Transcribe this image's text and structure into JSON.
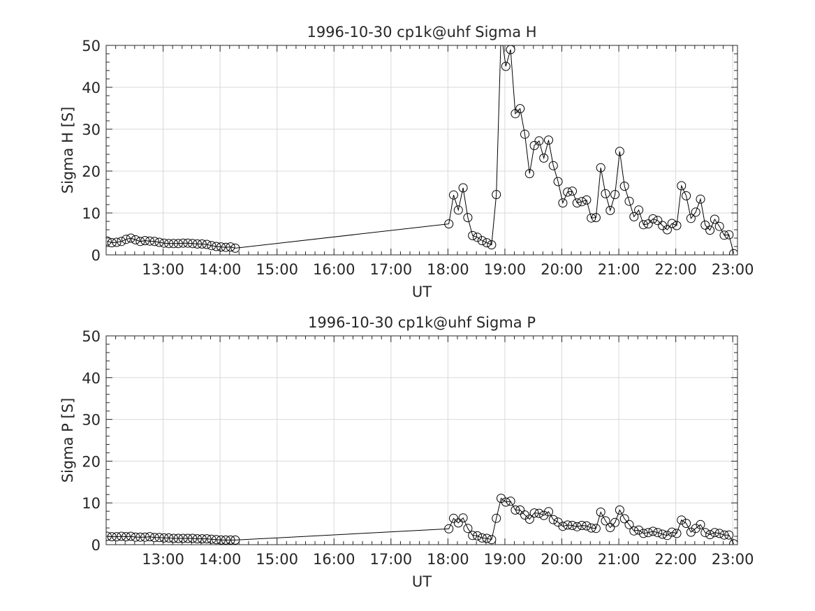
{
  "chart_data": [
    {
      "type": "line",
      "title": "1996-10-30  cp1k@uhf Sigma H",
      "xlabel": "UT",
      "ylabel": "Sigma H [S]",
      "ylim": [
        0,
        50
      ],
      "yticks": [
        "0",
        "10",
        "20",
        "30",
        "40",
        "50"
      ],
      "xticks": [
        "13:00",
        "14:00",
        "15:00",
        "16:00",
        "17:00",
        "18:00",
        "19:00",
        "20:00",
        "21:00",
        "22:00",
        "23:00"
      ],
      "grid": true,
      "series": [
        {
          "x": [
            "12:01",
            "12:06",
            "12:11",
            "12:16",
            "12:21",
            "12:26",
            "12:31",
            "12:36",
            "12:41",
            "12:46",
            "12:51",
            "12:56",
            "13:01",
            "13:06",
            "13:11",
            "13:16",
            "13:21",
            "13:26",
            "13:31",
            "13:36",
            "13:41",
            "13:46",
            "13:51",
            "13:56",
            "14:01",
            "14:06",
            "14:11",
            "14:16",
            "18:01",
            "18:06",
            "18:11",
            "18:16",
            "18:21",
            "18:26",
            "18:31",
            "18:36",
            "18:41",
            "18:46",
            "18:51",
            "18:56",
            "19:01",
            "19:06",
            "19:11",
            "19:16",
            "19:21",
            "19:26",
            "19:31",
            "19:36",
            "19:41",
            "19:46",
            "19:51",
            "19:56",
            "20:01",
            "20:06",
            "20:11",
            "20:16",
            "20:21",
            "20:26",
            "20:31",
            "20:36",
            "20:41",
            "20:46",
            "20:51",
            "20:56",
            "21:01",
            "21:06",
            "21:11",
            "21:16",
            "21:21",
            "21:26",
            "21:31",
            "21:36",
            "21:41",
            "21:46",
            "21:51",
            "21:56",
            "22:01",
            "22:06",
            "22:11",
            "22:16",
            "22:21",
            "22:26",
            "22:31",
            "22:36",
            "22:41",
            "22:46",
            "22:51",
            "22:56",
            "23:01"
          ],
          "y": [
            3.3,
            2.9,
            3.0,
            3.2,
            3.7,
            4.0,
            3.6,
            3.2,
            3.4,
            3.3,
            3.2,
            3.0,
            2.8,
            2.7,
            2.7,
            2.7,
            2.8,
            2.8,
            2.7,
            2.6,
            2.6,
            2.5,
            2.2,
            2.0,
            1.9,
            1.8,
            1.9,
            1.6,
            7.4,
            14.3,
            10.7,
            16.0,
            8.9,
            4.6,
            4.2,
            3.4,
            2.9,
            2.4,
            14.4,
            53.0,
            45.0,
            49.0,
            33.7,
            34.9,
            28.8,
            19.4,
            26.1,
            27.2,
            23.1,
            27.4,
            21.3,
            17.5,
            12.4,
            15.0,
            15.2,
            12.4,
            12.7,
            13.1,
            8.8,
            8.9,
            20.8,
            14.6,
            10.6,
            14.4,
            24.7,
            16.4,
            12.8,
            9.1,
            10.7,
            7.2,
            7.4,
            8.6,
            8.2,
            7.0,
            6.0,
            7.5,
            7.0,
            16.5,
            14.1,
            8.7,
            10.2,
            13.3,
            7.1,
            5.9,
            8.5,
            6.8,
            4.7,
            4.8,
            0.3
          ]
        }
      ]
    },
    {
      "type": "line",
      "title": "1996-10-30  cp1k@uhf Sigma P",
      "xlabel": "UT",
      "ylabel": "Sigma P [S]",
      "ylim": [
        0,
        50
      ],
      "yticks": [
        "0",
        "10",
        "20",
        "30",
        "40",
        "50"
      ],
      "xticks": [
        "13:00",
        "14:00",
        "15:00",
        "16:00",
        "17:00",
        "18:00",
        "19:00",
        "20:00",
        "21:00",
        "22:00",
        "23:00"
      ],
      "grid": true,
      "series": [
        {
          "x": [
            "12:01",
            "12:06",
            "12:11",
            "12:16",
            "12:21",
            "12:26",
            "12:31",
            "12:36",
            "12:41",
            "12:46",
            "12:51",
            "12:56",
            "13:01",
            "13:06",
            "13:11",
            "13:16",
            "13:21",
            "13:26",
            "13:31",
            "13:36",
            "13:41",
            "13:46",
            "13:51",
            "13:56",
            "14:01",
            "14:06",
            "14:11",
            "14:16",
            "18:01",
            "18:06",
            "18:11",
            "18:16",
            "18:21",
            "18:26",
            "18:31",
            "18:36",
            "18:41",
            "18:46",
            "18:51",
            "18:56",
            "19:01",
            "19:06",
            "19:11",
            "19:16",
            "19:21",
            "19:26",
            "19:31",
            "19:36",
            "19:41",
            "19:46",
            "19:51",
            "19:56",
            "20:01",
            "20:06",
            "20:11",
            "20:16",
            "20:21",
            "20:26",
            "20:31",
            "20:36",
            "20:41",
            "20:46",
            "20:51",
            "20:56",
            "21:01",
            "21:06",
            "21:11",
            "21:16",
            "21:21",
            "21:26",
            "21:31",
            "21:36",
            "21:41",
            "21:46",
            "21:51",
            "21:56",
            "22:01",
            "22:06",
            "22:11",
            "22:16",
            "22:21",
            "22:26",
            "22:31",
            "22:36",
            "22:41",
            "22:46",
            "22:51",
            "22:56",
            "23:01"
          ],
          "y": [
            2.0,
            1.9,
            1.9,
            2.0,
            1.9,
            2.0,
            1.8,
            1.8,
            1.8,
            1.9,
            1.7,
            1.7,
            1.6,
            1.6,
            1.5,
            1.5,
            1.5,
            1.5,
            1.5,
            1.4,
            1.4,
            1.4,
            1.3,
            1.2,
            1.1,
            1.1,
            1.1,
            1.1,
            3.8,
            6.3,
            5.2,
            6.4,
            3.9,
            2.2,
            2.1,
            1.6,
            1.5,
            1.2,
            6.3,
            11.1,
            10.2,
            10.4,
            8.3,
            8.3,
            7.1,
            6.1,
            7.6,
            7.5,
            7.0,
            7.9,
            6.0,
            5.4,
            4.4,
            4.7,
            4.6,
            4.3,
            4.6,
            4.5,
            4.0,
            3.9,
            7.8,
            5.7,
            4.1,
            5.3,
            8.3,
            6.2,
            4.8,
            3.3,
            3.5,
            2.7,
            2.9,
            3.2,
            2.9,
            2.5,
            2.2,
            3.0,
            2.7,
            5.9,
            5.1,
            3.0,
            3.9,
            4.8,
            2.9,
            2.4,
            2.9,
            2.7,
            2.3,
            2.3,
            0.2
          ]
        }
      ]
    }
  ]
}
